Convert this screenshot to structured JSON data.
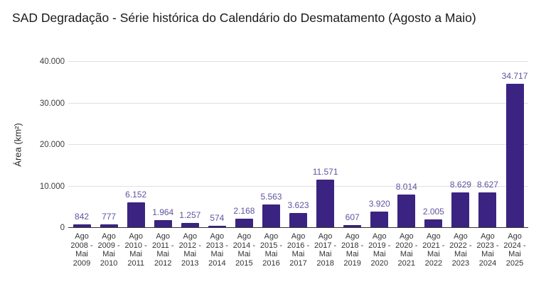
{
  "page": {
    "background": "#ffffff"
  },
  "chart_data": {
    "type": "bar",
    "title": "SAD Degradação - Série histórica do Calendário do Desmatamento (Agosto a Maio)",
    "xlabel": "",
    "ylabel": "Área (km²)",
    "ylim": [
      0,
      40000
    ],
    "yticks": [
      "0",
      "10.000",
      "20.000",
      "30.000",
      "40.000"
    ],
    "grid": true,
    "legend": "none",
    "bar_color": "#3b2481",
    "annotation_color": "#5e54a0",
    "axis_text_color": "#3c3c3c",
    "gridline_color": "#e0e0e0",
    "categories": [
      "Ago 2008 - Mai 2009",
      "Ago 2009 - Mai 2010",
      "Ago 2010 - Mai 2011",
      "Ago 2011 - Mai 2012",
      "Ago 2012 - Mai 2013",
      "Ago 2013 - Mai 2014",
      "Ago 2014 - Mai 2015",
      "Ago 2015 - Mai 2016",
      "Ago 2016 - Mai 2017",
      "Ago 2017 - Mai 2018",
      "Ago 2018 - Mai 2019",
      "Ago 2019 - Mai 2020",
      "Ago 2020 - Mai 2021",
      "Ago 2021 - Mai 2022",
      "Ago 2022 - Mai 2023",
      "Ago 2023 - Mai 2024",
      "Ago 2024 - Mai 2025"
    ],
    "category_lines": [
      [
        "Ago",
        "2008 -",
        "Mai",
        "2009"
      ],
      [
        "Ago",
        "2009 -",
        "Mai",
        "2010"
      ],
      [
        "Ago",
        "2010 -",
        "Mai",
        "2011"
      ],
      [
        "Ago",
        "2011 -",
        "Mai",
        "2012"
      ],
      [
        "Ago",
        "2012 -",
        "Mai",
        "2013"
      ],
      [
        "Ago",
        "2013 -",
        "Mai",
        "2014"
      ],
      [
        "Ago",
        "2014 -",
        "Mai",
        "2015"
      ],
      [
        "Ago",
        "2015 -",
        "Mai",
        "2016"
      ],
      [
        "Ago",
        "2016 -",
        "Mai",
        "2017"
      ],
      [
        "Ago",
        "2017 -",
        "Mai",
        "2018"
      ],
      [
        "Ago",
        "2018 -",
        "Mai",
        "2019"
      ],
      [
        "Ago",
        "2019 -",
        "Mai",
        "2020"
      ],
      [
        "Ago",
        "2020 -",
        "Mai",
        "2021"
      ],
      [
        "Ago",
        "2021 -",
        "Mai",
        "2022"
      ],
      [
        "Ago",
        "2022 -",
        "Mai",
        "2023"
      ],
      [
        "Ago",
        "2023 -",
        "Mai",
        "2024"
      ],
      [
        "Ago",
        "2024 -",
        "Mai",
        "2025"
      ]
    ],
    "values": [
      842,
      777,
      6152,
      1964,
      1257,
      574,
      2168,
      5563,
      3623,
      11571,
      607,
      3920,
      8014,
      2005,
      8629,
      8627,
      34717
    ],
    "value_labels": [
      "842",
      "777",
      "6.152",
      "1.964",
      "1.257",
      "574",
      "2.168",
      "5.563",
      "3.623",
      "11.571",
      "607",
      "3.920",
      "8.014",
      "2.005",
      "8.629",
      "8.627",
      "34.717"
    ]
  }
}
